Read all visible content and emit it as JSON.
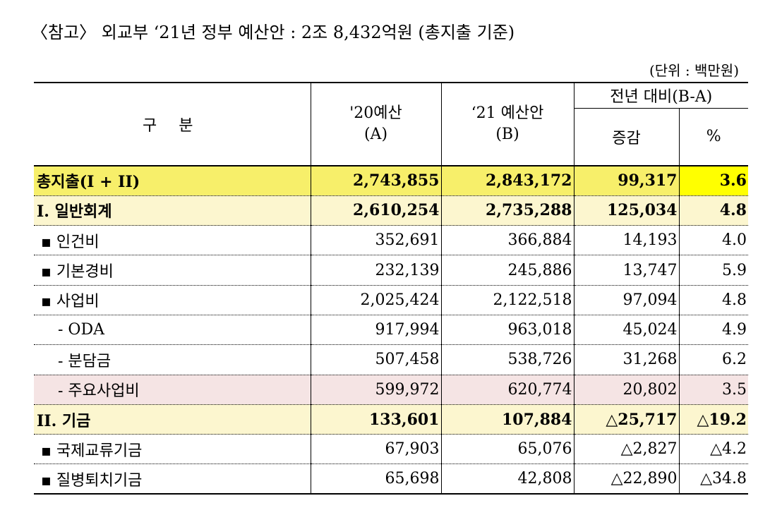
{
  "title": "〈참고〉 외교부 ‘21년 정부 예산안 : 2조 8,432억원 (총지출 기준)",
  "unit": "(단위 : 백만원)",
  "table": {
    "header": {
      "category": "구 분",
      "col_a": [
        "'20예산",
        "(A)"
      ],
      "col_b": [
        "‘21 예산안",
        "(B)"
      ],
      "diff_group": "전년 대비(B-A)",
      "diff": "증감",
      "pct": "%"
    },
    "rows": [
      [
        "총지출(I + II)",
        "2,743,855",
        "2,843,172",
        "99,317",
        "3.6"
      ],
      [
        "I. 일반회계",
        "2,610,254",
        "2,735,288",
        "125,034",
        "4.8"
      ],
      [
        "▪ 인건비",
        "352,691",
        "366,884",
        "14,193",
        "4.0"
      ],
      [
        "▪ 기본경비",
        "232,139",
        "245,886",
        "13,747",
        "5.9"
      ],
      [
        "▪ 사업비",
        "2,025,424",
        "2,122,518",
        "97,094",
        "4.8"
      ],
      [
        "- ODA",
        "917,994",
        "963,018",
        "45,024",
        "4.9"
      ],
      [
        "- 분담금",
        "507,458",
        "538,726",
        "31,268",
        "6.2"
      ],
      [
        "- 주요사업비",
        "599,972",
        "620,774",
        "20,802",
        "3.5"
      ],
      [
        "II. 기금",
        "133,601",
        "107,884",
        "△25,717",
        "△19.2"
      ],
      [
        "▪ 국제교류기금",
        "67,903",
        "65,076",
        "△2,827",
        "△4.2"
      ],
      [
        "▪ 질병퇴치기금",
        "65,698",
        "42,808",
        "△22,890",
        "△34.8"
      ]
    ]
  }
}
